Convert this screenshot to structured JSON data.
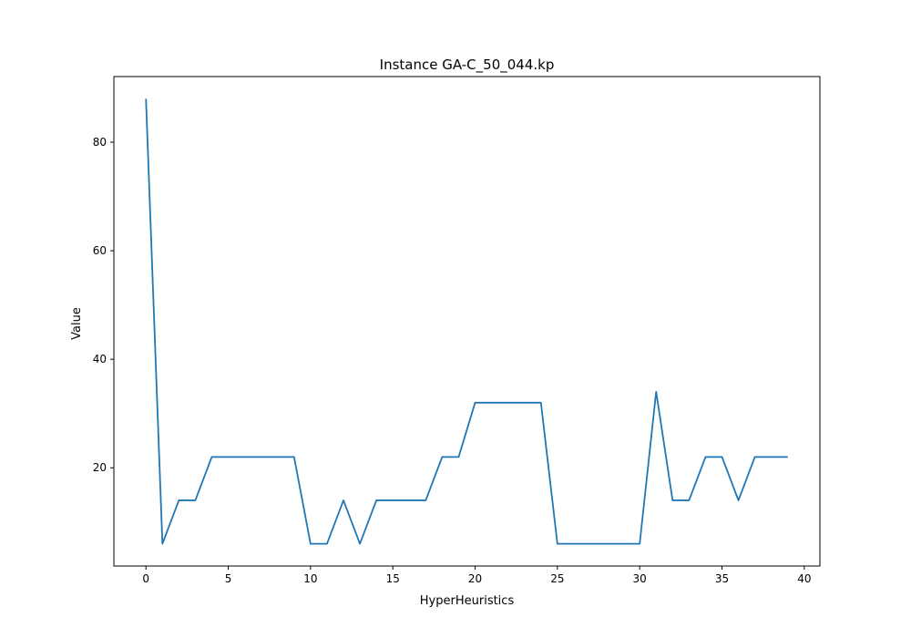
{
  "chart_data": {
    "type": "line",
    "title": "Instance GA-C_50_044.kp",
    "xlabel": "HyperHeuristics",
    "ylabel": "Value",
    "xlim": [
      -1.95,
      40.95
    ],
    "ylim": [
      1.9,
      92.1
    ],
    "xticks": [
      0,
      5,
      10,
      15,
      20,
      25,
      30,
      35,
      40
    ],
    "yticks": [
      20,
      40,
      60,
      80
    ],
    "grid": false,
    "legend": "none",
    "series": [
      {
        "color": "#1f77b4",
        "x": [
          0,
          1,
          2,
          3,
          4,
          5,
          6,
          7,
          8,
          9,
          10,
          11,
          12,
          13,
          14,
          15,
          16,
          17,
          18,
          19,
          20,
          21,
          22,
          23,
          24,
          25,
          26,
          27,
          28,
          29,
          30,
          31,
          32,
          33,
          34,
          35,
          36,
          37,
          38,
          39
        ],
        "y": [
          88,
          6,
          14,
          14,
          22,
          22,
          22,
          22,
          22,
          22,
          6,
          6,
          14,
          6,
          14,
          14,
          14,
          14,
          22,
          22,
          32,
          32,
          32,
          32,
          32,
          6,
          6,
          6,
          6,
          6,
          6,
          34,
          14,
          14,
          22,
          22,
          14,
          22,
          22,
          22
        ]
      }
    ]
  }
}
